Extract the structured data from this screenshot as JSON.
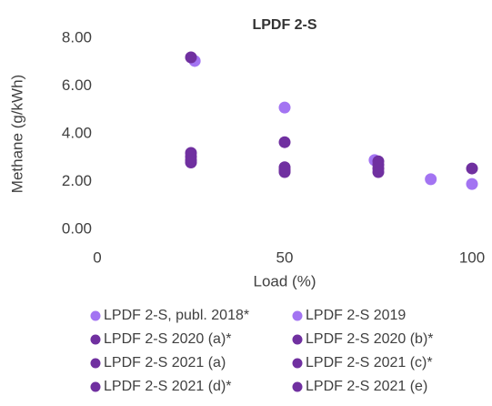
{
  "chart_data": {
    "type": "scatter",
    "title": "LPDF 2-S",
    "x_label": "Load (%)",
    "y_label": "Methane (g/kWh)",
    "xlim": [
      0,
      100
    ],
    "xticks": [
      0,
      50,
      100
    ],
    "ylim": [
      0,
      8
    ],
    "yticks": [
      {
        "value": 0,
        "label": "0.00"
      },
      {
        "value": 2,
        "label": "2.00"
      },
      {
        "value": 4,
        "label": "4.00"
      },
      {
        "value": 6,
        "label": "6.00"
      },
      {
        "value": 8,
        "label": "8.00"
      }
    ],
    "grid": false,
    "series": [
      {
        "name": "LPDF 2-S, publ. 2018*",
        "color": "#a374f2",
        "x": [
          26,
          50,
          74
        ],
        "y": [
          7.05,
          5.1,
          2.9
        ]
      },
      {
        "name": "LPDF 2-S 2019",
        "color": "#a374f2",
        "x": [
          89,
          100
        ],
        "y": [
          2.1,
          1.9
        ]
      },
      {
        "name": "LPDF 2-S 2020 (a)*",
        "color": "#7030a0",
        "x": [
          25,
          50,
          75
        ],
        "y": [
          7.2,
          3.65,
          2.85
        ]
      },
      {
        "name": "LPDF 2-S 2020 (b)*",
        "color": "#7030a0",
        "x": [
          25,
          50,
          75,
          100
        ],
        "y": [
          3.2,
          2.6,
          2.7,
          2.55
        ]
      },
      {
        "name": "LPDF 2-S 2021 (a)",
        "color": "#7030a0",
        "x": [
          25,
          50,
          75
        ],
        "y": [
          3.05,
          2.5,
          2.55
        ]
      },
      {
        "name": "LPDF 2-S 2021 (c)*",
        "color": "#7030a0",
        "x": [
          25,
          50,
          75
        ],
        "y": [
          2.9,
          2.4,
          2.4
        ]
      },
      {
        "name": "LPDF 2-S 2021 (d)*",
        "color": "#7030a0",
        "x": [
          25
        ],
        "y": [
          2.8
        ]
      },
      {
        "name": "LPDF 2-S 2021 (e)",
        "color": "#7030a0",
        "x": [
          50
        ],
        "y": [
          2.45
        ]
      }
    ]
  }
}
